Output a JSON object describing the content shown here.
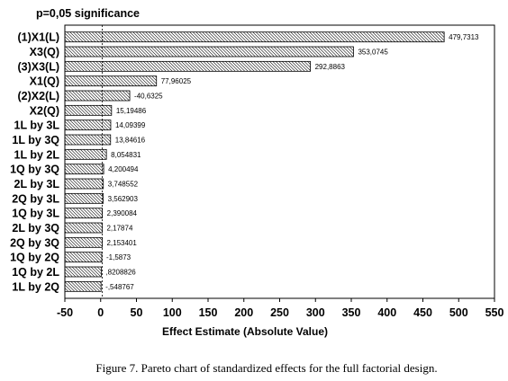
{
  "caption": "Figure 7. Pareto chart of standardized effects for the full factorial design.",
  "colors": {
    "ink": "#000000",
    "background": "#ffffff"
  },
  "chart_data": {
    "type": "bar",
    "horizontal": true,
    "significance_label": "p=0,05 significance",
    "significance_line": 2.2,
    "xlabel": "Effect Estimate (Absolute Value)",
    "xlim": [
      -50,
      550
    ],
    "x_ticks": [
      -50,
      0,
      50,
      100,
      150,
      200,
      250,
      300,
      350,
      400,
      450,
      500,
      550
    ],
    "grid": false,
    "categories": [
      "(1)X1(L)",
      "X3(Q)",
      "(3)X3(L)",
      "X1(Q)",
      "(2)X2(L)",
      "X2(Q)",
      "1L by 3L",
      "1L by 3Q",
      "1L by 2L",
      "1Q by 3Q",
      "2L by 3L",
      "2Q by 3L",
      "1Q by 3L",
      "2L by 3Q",
      "2Q by 3Q",
      "1Q by 2Q",
      "1Q by 2L",
      "1L by 2Q"
    ],
    "values": [
      479.7313,
      353.0745,
      292.8863,
      77.96025,
      -40.6325,
      15.19486,
      14.09399,
      13.84616,
      8.054831,
      4.200494,
      3.748552,
      3.562903,
      2.390084,
      2.17874,
      2.153401,
      -1.5873,
      0.8208826,
      -0.548767
    ],
    "value_labels": [
      "479,7313",
      "353,0745",
      "292,8863",
      "77,96025",
      "-40,6325",
      "15,19486",
      "14,09399",
      "13,84616",
      "8,054831",
      "4,200494",
      "3,748552",
      "3,562903",
      "2,390084",
      "2,17874",
      "2,153401",
      "-1,5873",
      ",8208826",
      "-,548767"
    ]
  }
}
